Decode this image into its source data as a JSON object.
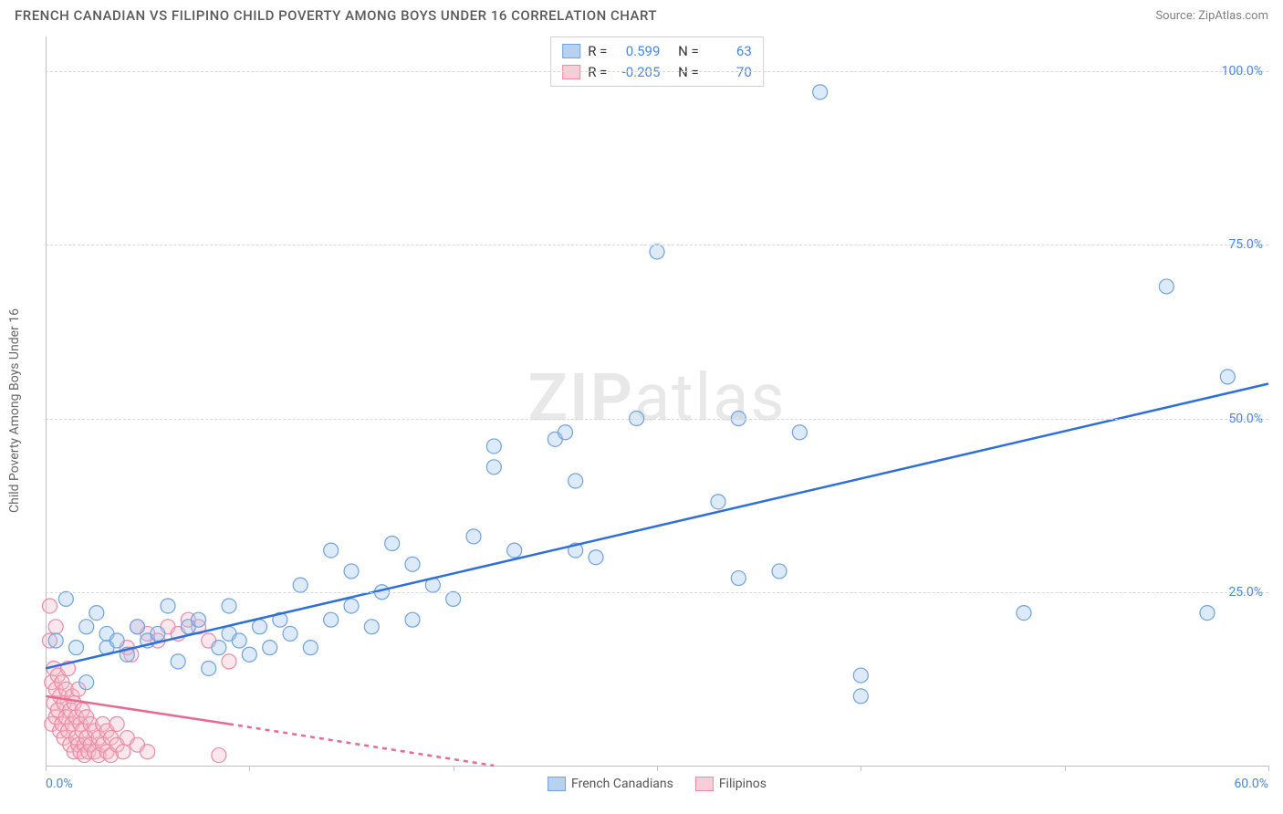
{
  "header": {
    "title": "FRENCH CANADIAN VS FILIPINO CHILD POVERTY AMONG BOYS UNDER 16 CORRELATION CHART",
    "source_label": "Source:",
    "source_name": "ZipAtlas.com"
  },
  "chart": {
    "type": "scatter",
    "ylabel": "Child Poverty Among Boys Under 16",
    "label_fontsize": 14,
    "label_color": "#666666",
    "background_color": "#ffffff",
    "grid_color": "#d8d8d8",
    "axis_color": "#c0c0c0",
    "xlim": [
      0,
      60
    ],
    "ylim": [
      0,
      105
    ],
    "x_min_label": "0.0%",
    "x_max_label": "60.0%",
    "y_ticks": [
      {
        "v": 25,
        "label": "25.0%"
      },
      {
        "v": 50,
        "label": "50.0%"
      },
      {
        "v": 75,
        "label": "75.0%"
      },
      {
        "v": 100,
        "label": "100.0%"
      }
    ],
    "x_tick_positions": [
      0,
      10,
      20,
      30,
      40,
      50,
      60
    ],
    "watermark_zip": "ZIP",
    "watermark_atlas": "atlas",
    "marker_radius": 8,
    "marker_stroke_width": 1.2,
    "marker_fill_opacity": 0.35,
    "trend_line_width": 2.5,
    "series": {
      "a": {
        "label": "French Canadians",
        "color_fill": "#9ec3ef",
        "color_stroke": "#6fa3de",
        "swatch_fill": "#b8d1f0",
        "swatch_border": "#6fa3de",
        "R_label": "R =",
        "R": "0.599",
        "N_label": "N =",
        "N": "63",
        "trend": {
          "x1": 0,
          "y1": 14,
          "x2": 60,
          "y2": 55,
          "dash": "none",
          "color": "#2f6fd8"
        },
        "points": [
          [
            0.5,
            18
          ],
          [
            1,
            24
          ],
          [
            1.5,
            17
          ],
          [
            2,
            12
          ],
          [
            2,
            20
          ],
          [
            2.5,
            22
          ],
          [
            3,
            17
          ],
          [
            3,
            19
          ],
          [
            3.5,
            18
          ],
          [
            4,
            16
          ],
          [
            4.5,
            20
          ],
          [
            5,
            18
          ],
          [
            5.5,
            19
          ],
          [
            6,
            23
          ],
          [
            6.5,
            15
          ],
          [
            7,
            20
          ],
          [
            7.5,
            21
          ],
          [
            8,
            14
          ],
          [
            8.5,
            17
          ],
          [
            9,
            19
          ],
          [
            9,
            23
          ],
          [
            9.5,
            18
          ],
          [
            10,
            16
          ],
          [
            10.5,
            20
          ],
          [
            11,
            17
          ],
          [
            11.5,
            21
          ],
          [
            12,
            19
          ],
          [
            12.5,
            26
          ],
          [
            13,
            17
          ],
          [
            14,
            21
          ],
          [
            14,
            31
          ],
          [
            15,
            23
          ],
          [
            15,
            28
          ],
          [
            16,
            20
          ],
          [
            16.5,
            25
          ],
          [
            17,
            32
          ],
          [
            18,
            21
          ],
          [
            18,
            29
          ],
          [
            19,
            26
          ],
          [
            20,
            24
          ],
          [
            21,
            33
          ],
          [
            22,
            43
          ],
          [
            22,
            46
          ],
          [
            23,
            31
          ],
          [
            25,
            47
          ],
          [
            25.5,
            48
          ],
          [
            26,
            31
          ],
          [
            26,
            41
          ],
          [
            27,
            30
          ],
          [
            29,
            50
          ],
          [
            30,
            74
          ],
          [
            33,
            38
          ],
          [
            34,
            27
          ],
          [
            34,
            50
          ],
          [
            36,
            28
          ],
          [
            37,
            48
          ],
          [
            38,
            97
          ],
          [
            40,
            10
          ],
          [
            40,
            13
          ],
          [
            48,
            22
          ],
          [
            55,
            69
          ],
          [
            57,
            22
          ],
          [
            58,
            56
          ]
        ]
      },
      "b": {
        "label": "Filipinos",
        "color_fill": "#f5b9c9",
        "color_stroke": "#eb8aa6",
        "swatch_fill": "#f7cdd8",
        "swatch_border": "#eb8aa6",
        "R_label": "R =",
        "R": "-0.205",
        "N_label": "N =",
        "N": "70",
        "trend": {
          "x1": 0,
          "y1": 10,
          "x2": 9,
          "y2": 6,
          "dash_ext_x2": 22,
          "dash_ext_y2": 0,
          "color": "#e86a92"
        },
        "points": [
          [
            0.2,
            18
          ],
          [
            0.2,
            23
          ],
          [
            0.3,
            12
          ],
          [
            0.3,
            6
          ],
          [
            0.4,
            14
          ],
          [
            0.4,
            9
          ],
          [
            0.5,
            20
          ],
          [
            0.5,
            7
          ],
          [
            0.5,
            11
          ],
          [
            0.6,
            8
          ],
          [
            0.6,
            13
          ],
          [
            0.7,
            5
          ],
          [
            0.7,
            10
          ],
          [
            0.8,
            6
          ],
          [
            0.8,
            12
          ],
          [
            0.9,
            9
          ],
          [
            0.9,
            4
          ],
          [
            1.0,
            11
          ],
          [
            1.0,
            7
          ],
          [
            1.1,
            14
          ],
          [
            1.1,
            5
          ],
          [
            1.2,
            8
          ],
          [
            1.2,
            3
          ],
          [
            1.3,
            6
          ],
          [
            1.3,
            10
          ],
          [
            1.4,
            2
          ],
          [
            1.4,
            9
          ],
          [
            1.5,
            7
          ],
          [
            1.5,
            4
          ],
          [
            1.6,
            11
          ],
          [
            1.6,
            3
          ],
          [
            1.7,
            6
          ],
          [
            1.7,
            2
          ],
          [
            1.8,
            8
          ],
          [
            1.8,
            5
          ],
          [
            1.9,
            3
          ],
          [
            1.9,
            1.5
          ],
          [
            2.0,
            7
          ],
          [
            2.0,
            4
          ],
          [
            2.1,
            2
          ],
          [
            2.2,
            6
          ],
          [
            2.2,
            3
          ],
          [
            2.4,
            5
          ],
          [
            2.4,
            2
          ],
          [
            2.6,
            4
          ],
          [
            2.6,
            1.5
          ],
          [
            2.8,
            3
          ],
          [
            2.8,
            6
          ],
          [
            3.0,
            2
          ],
          [
            3.0,
            5
          ],
          [
            3.2,
            4
          ],
          [
            3.2,
            1.5
          ],
          [
            3.5,
            3
          ],
          [
            3.5,
            6
          ],
          [
            3.8,
            2
          ],
          [
            4.0,
            17
          ],
          [
            4.0,
            4
          ],
          [
            4.2,
            16
          ],
          [
            4.5,
            3
          ],
          [
            4.5,
            20
          ],
          [
            5.0,
            19
          ],
          [
            5.0,
            2
          ],
          [
            5.5,
            18
          ],
          [
            6.0,
            20
          ],
          [
            6.5,
            19
          ],
          [
            7.0,
            21
          ],
          [
            7.5,
            20
          ],
          [
            8.0,
            18
          ],
          [
            8.5,
            1.5
          ],
          [
            9.0,
            15
          ]
        ]
      }
    }
  }
}
